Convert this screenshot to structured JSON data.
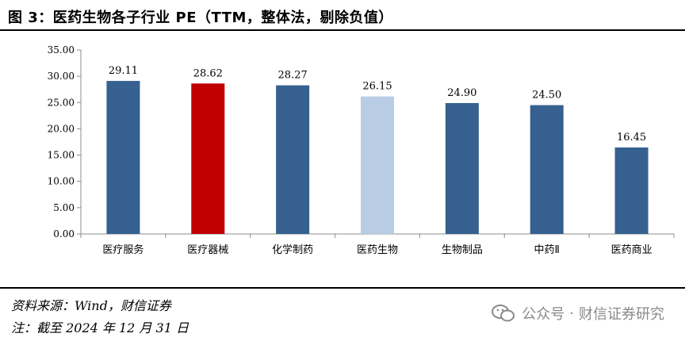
{
  "title": "图 3：医药生物各子行业 PE（TTM，整体法，剔除负值）",
  "source": "资料来源：Wind，财信证券",
  "note": "注：截至 2024 年 12 月 31 日",
  "watermark": {
    "platform": "公众号",
    "separator": "·",
    "account": "财信证券研究",
    "icon": "wechat-icon"
  },
  "colors": {
    "default": "#35608f",
    "highlight": "#c00000",
    "light": "#b8cde3"
  },
  "chart_data": {
    "type": "bar",
    "title": "",
    "xlabel": "",
    "ylabel": "",
    "categories": [
      "医疗服务",
      "医疗器械",
      "化学制药",
      "医药生物",
      "生物制品",
      "中药Ⅱ",
      "医药商业"
    ],
    "values": [
      29.11,
      28.62,
      28.27,
      26.15,
      24.9,
      24.5,
      16.45
    ],
    "value_labels": [
      "29.11",
      "28.62",
      "28.27",
      "26.15",
      "24.90",
      "24.50",
      "16.45"
    ],
    "bar_colors": [
      "#35608f",
      "#c00000",
      "#35608f",
      "#b8cde3",
      "#35608f",
      "#35608f",
      "#35608f"
    ],
    "ylim": [
      0,
      35
    ],
    "yticks": [
      "0.00",
      "5.00",
      "10.00",
      "15.00",
      "20.00",
      "25.00",
      "30.00",
      "35.00"
    ],
    "grid": false,
    "legend": "none"
  }
}
